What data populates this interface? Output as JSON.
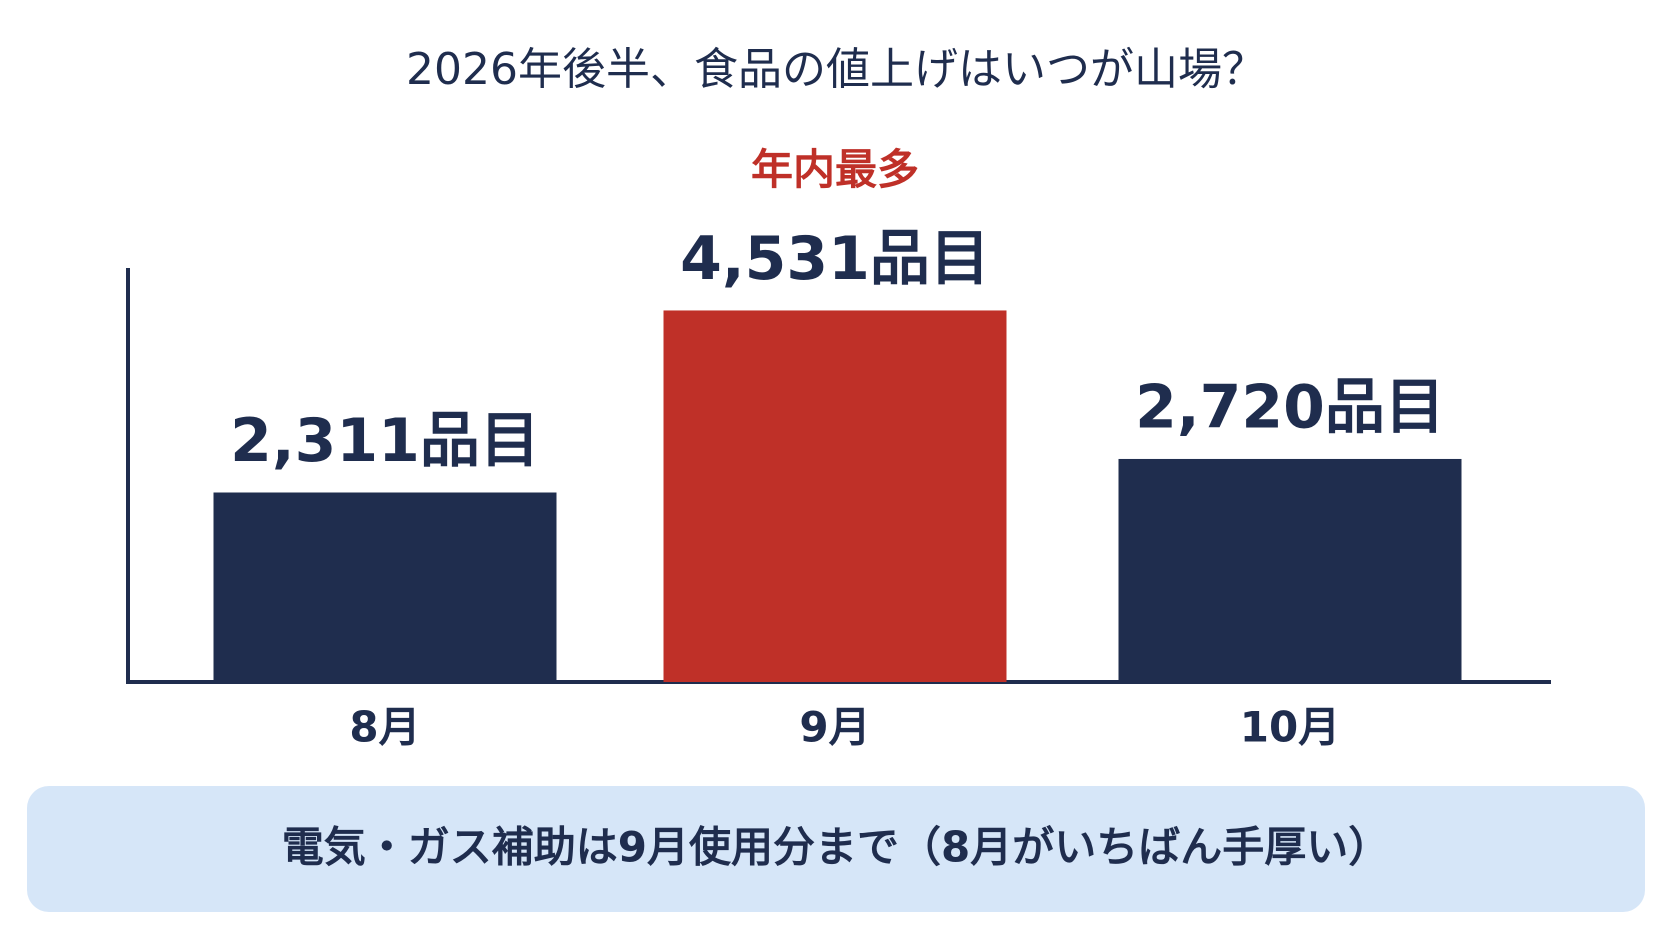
{
  "chart_data": {
    "type": "bar",
    "title": "2026年後半、食品の値上げはいつが山場？",
    "categories": [
      "8月",
      "9月",
      "10月"
    ],
    "values": [
      2311,
      4531,
      2720
    ],
    "value_labels": [
      "2,311品目",
      "4,531品目",
      "2,720品目"
    ],
    "annotations": [
      null,
      "年内最多",
      null
    ],
    "colors": [
      "#1f2d4e",
      "#bf3028",
      "#1f2d4e"
    ],
    "annotation_color": "#bf3028",
    "ylim": [
      0,
      5000
    ],
    "note": "電気・ガス補助は9月使用分まで（8月がいちばん手厚い）"
  }
}
